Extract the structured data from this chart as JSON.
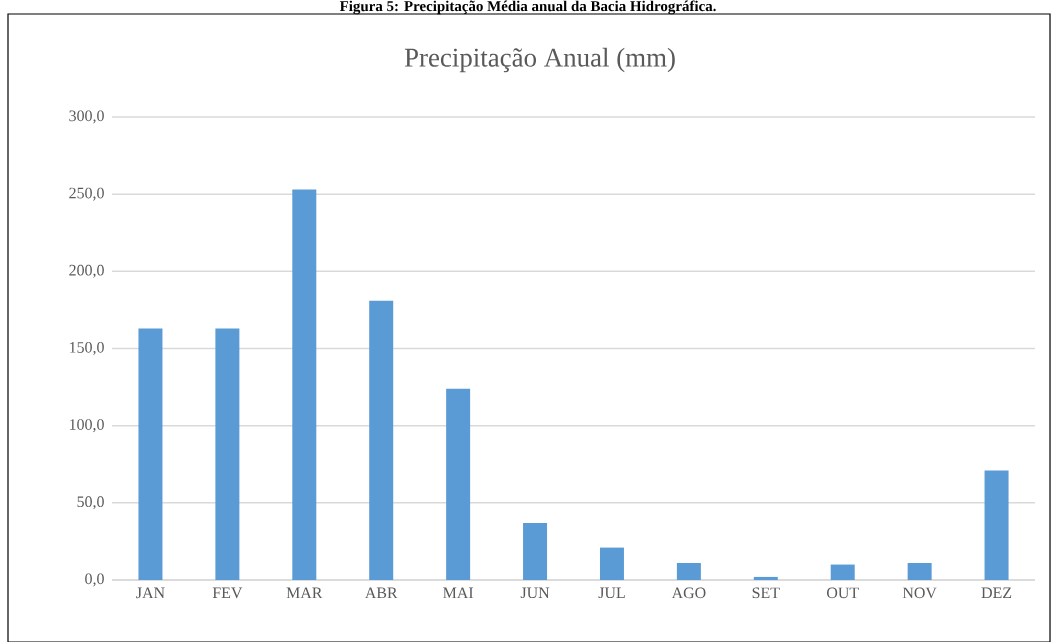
{
  "chart_data": {
    "type": "bar",
    "title": "Precipitação Anual (mm)",
    "annotations": [
      "Figura 5: Precipitação Média anual da Bacia Hidrográfica."
    ],
    "categories": [
      "JAN",
      "FEV",
      "MAR",
      "ABR",
      "MAI",
      "JUN",
      "JUL",
      "AGO",
      "SET",
      "OUT",
      "NOV",
      "DEZ"
    ],
    "values": [
      163,
      163,
      253,
      181,
      124,
      37,
      21,
      11,
      2,
      10,
      11,
      71
    ],
    "color": "#5b9bd5",
    "ylim": [
      0,
      300
    ],
    "yticks": [
      {
        "value": 0,
        "label": "0,0"
      },
      {
        "value": 50,
        "label": "50,0"
      },
      {
        "value": 100,
        "label": "100,0"
      },
      {
        "value": 150,
        "label": "150,0"
      },
      {
        "value": 200,
        "label": "200,0"
      },
      {
        "value": 250,
        "label": "250,0"
      },
      {
        "value": 300,
        "label": "300,0"
      }
    ],
    "grid": "y"
  }
}
